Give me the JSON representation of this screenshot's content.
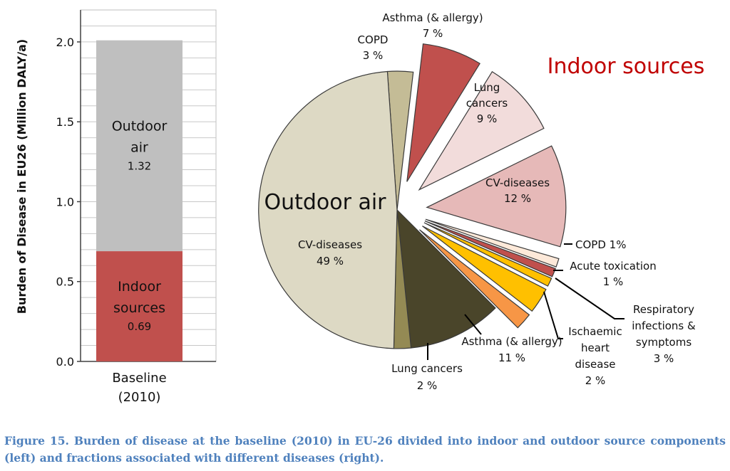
{
  "caption": "Figure 15. Burden of disease at the baseline (2010) in EU-26 divided into indoor and outdoor source components (left) and fractions associated with different diseases (right).",
  "chart_data": [
    {
      "type": "bar",
      "stacked": true,
      "ylabel": "Burden of Disease in EU26 (Million DALY/a)",
      "ylim": [
        0,
        2.2
      ],
      "yticks": [
        "0.0",
        "0.5",
        "1.0",
        "1.5",
        "2.0"
      ],
      "ytick_values": [
        0,
        0.5,
        1.0,
        1.5,
        2.0
      ],
      "categories": [
        "Baseline (2010)"
      ],
      "category_lines": [
        "Baseline",
        "(2010)"
      ],
      "grid": true,
      "series": [
        {
          "name": "Indoor sources",
          "label_lines": [
            "Indoor",
            "sources"
          ],
          "values": [
            0.69
          ],
          "value_label": "0.69",
          "color": "#c0504d",
          "label_color": "#ffffff"
        },
        {
          "name": "Outdoor air",
          "label_lines": [
            "Outdoor",
            "air"
          ],
          "values": [
            1.32
          ],
          "value_label": "1.32",
          "color": "#bfbfbf",
          "label_color": "#111111"
        }
      ]
    },
    {
      "type": "pie",
      "group_labels": {
        "indoor": "Indoor sources",
        "outdoor": "Outdoor air"
      },
      "group_colors": {
        "indoor": "#c00000",
        "outdoor": "#000000"
      },
      "slices": [
        {
          "group": "outdoor",
          "name": "COPD",
          "label_lines": [
            "COPD",
            "3 %"
          ],
          "value": 3,
          "color": "#c4bc96",
          "exploded": false
        },
        {
          "group": "indoor",
          "name": "Asthma (& allergy)",
          "label_lines": [
            "Asthma (& allergy)",
            "7 %"
          ],
          "value": 7,
          "color": "#c0504d",
          "exploded": true
        },
        {
          "group": "indoor",
          "name": "Lung cancers",
          "label_lines": [
            "Lung",
            "cancers",
            "9 %"
          ],
          "value": 9,
          "color": "#f2dcdb",
          "exploded": true
        },
        {
          "group": "indoor",
          "name": "CV-diseases",
          "label_lines": [
            "CV-diseases",
            "12 %"
          ],
          "value": 12,
          "color": "#e6b9b8",
          "exploded": true
        },
        {
          "group": "indoor",
          "name": "COPD",
          "label_lines": [
            "COPD 1%"
          ],
          "value": 1,
          "color": "#fde9d9",
          "exploded": true
        },
        {
          "group": "indoor",
          "name": "COPD",
          "label_lines": [],
          "value": 1,
          "color": "#c0504d",
          "exploded": true
        },
        {
          "group": "indoor",
          "name": "Acute toxication",
          "label_lines": [
            "Acute toxication",
            "1 %"
          ],
          "value": 1,
          "color": "#ffc000",
          "exploded": true
        },
        {
          "group": "indoor",
          "name": "Respiratory infections & symptoms",
          "label_lines": [
            "Respiratory",
            "infections &",
            "symptoms",
            "3 %"
          ],
          "value": 3,
          "color": "#ffc000",
          "exploded": true
        },
        {
          "group": "indoor",
          "name": "Ischaemic heart disease",
          "label_lines": [
            "Ischaemic",
            "heart",
            "disease",
            "2 %"
          ],
          "value": 2,
          "color": "#f79646",
          "exploded": true
        },
        {
          "group": "outdoor",
          "name": "Asthma (& allergy)",
          "label_lines": [
            "Asthma (& allergy)",
            "11 %"
          ],
          "value": 11,
          "color": "#4a452a",
          "exploded": false
        },
        {
          "group": "outdoor",
          "name": "Lung cancers",
          "label_lines": [
            "Lung cancers",
            "2 %"
          ],
          "value": 2,
          "color": "#948a54",
          "exploded": false
        },
        {
          "group": "outdoor",
          "name": "CV-diseases",
          "label_lines": [
            "CV-diseases",
            "49 %"
          ],
          "value": 49,
          "color": "#ddd9c4",
          "exploded": false
        }
      ]
    }
  ]
}
